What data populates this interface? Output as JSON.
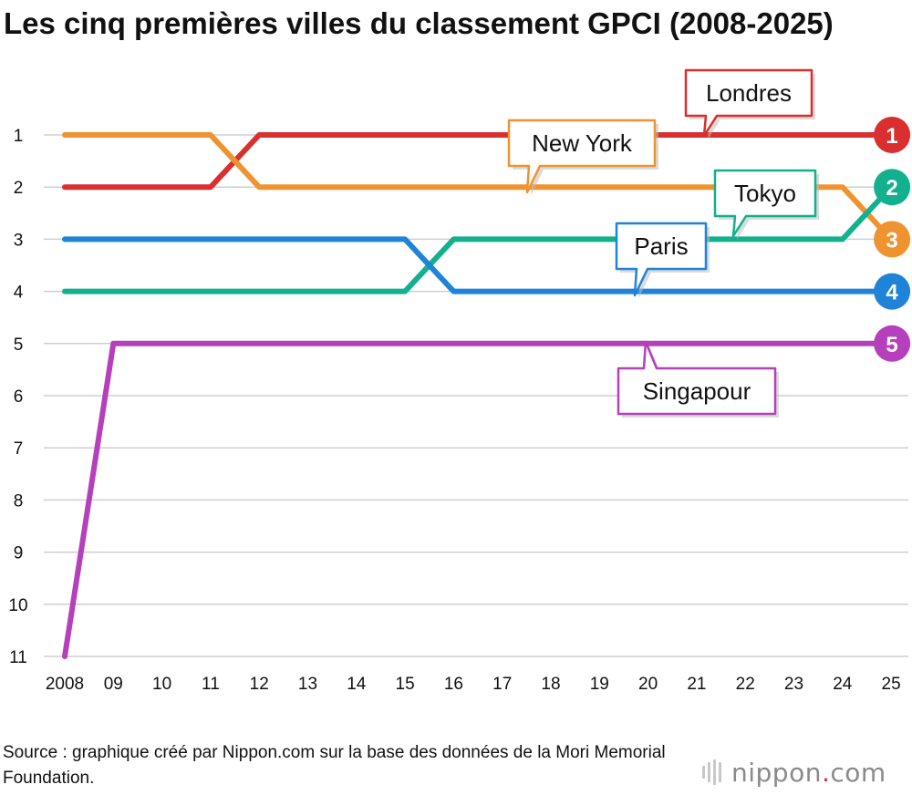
{
  "title": "Les cinq premières villes du classement GPCI (2008-2025)",
  "source": "Source : graphique créé par Nippon.com sur la base des données de la Mori Memorial Foundation.",
  "logo": {
    "name": "nippon",
    "dot": ".",
    "tld": "com"
  },
  "chart_data": {
    "type": "line",
    "title": "Les cinq premières villes du classement GPCI (2008-2025)",
    "xlabel": "",
    "ylabel": "",
    "x": [
      2008,
      2009,
      2010,
      2011,
      2012,
      2013,
      2014,
      2015,
      2016,
      2017,
      2018,
      2019,
      2020,
      2021,
      2022,
      2023,
      2024,
      2025
    ],
    "x_tick_labels": [
      "2008",
      "09",
      "10",
      "11",
      "12",
      "13",
      "14",
      "15",
      "16",
      "17",
      "18",
      "19",
      "20",
      "21",
      "22",
      "23",
      "24",
      "25"
    ],
    "y_tick_labels": [
      "1",
      "2",
      "3",
      "4",
      "5",
      "6",
      "7",
      "8",
      "9",
      "10",
      "11"
    ],
    "ylim": [
      11,
      1
    ],
    "y_inverted": true,
    "grid": true,
    "series": [
      {
        "name": "Londres",
        "color": "#d92f2f",
        "values": [
          2,
          2,
          2,
          2,
          1,
          1,
          1,
          1,
          1,
          1,
          1,
          1,
          1,
          1,
          1,
          1,
          1,
          1
        ]
      },
      {
        "name": "New York",
        "color": "#ef9330",
        "values": [
          1,
          1,
          1,
          1,
          2,
          2,
          2,
          2,
          2,
          2,
          2,
          2,
          2,
          2,
          2,
          2,
          2,
          3
        ]
      },
      {
        "name": "Tokyo",
        "color": "#12b08d",
        "values": [
          4,
          4,
          4,
          4,
          4,
          4,
          4,
          4,
          3,
          3,
          3,
          3,
          3,
          3,
          3,
          3,
          3,
          2
        ]
      },
      {
        "name": "Paris",
        "color": "#1f83d8",
        "values": [
          3,
          3,
          3,
          3,
          3,
          3,
          3,
          3,
          4,
          4,
          4,
          4,
          4,
          4,
          4,
          4,
          4,
          4
        ]
      },
      {
        "name": "Singapour",
        "color": "#b63fbc",
        "values": [
          11,
          5,
          5,
          5,
          5,
          5,
          5,
          5,
          5,
          5,
          5,
          5,
          5,
          5,
          5,
          5,
          5,
          5
        ]
      }
    ],
    "end_labels": [
      {
        "text": "1",
        "value": 1,
        "color": "#d92f2f"
      },
      {
        "text": "2",
        "value": 2,
        "color": "#12b08d"
      },
      {
        "text": "3",
        "value": 3,
        "color": "#ef9330"
      },
      {
        "text": "4",
        "value": 4,
        "color": "#1f83d8"
      },
      {
        "text": "5",
        "value": 5,
        "color": "#b63fbc"
      }
    ]
  }
}
